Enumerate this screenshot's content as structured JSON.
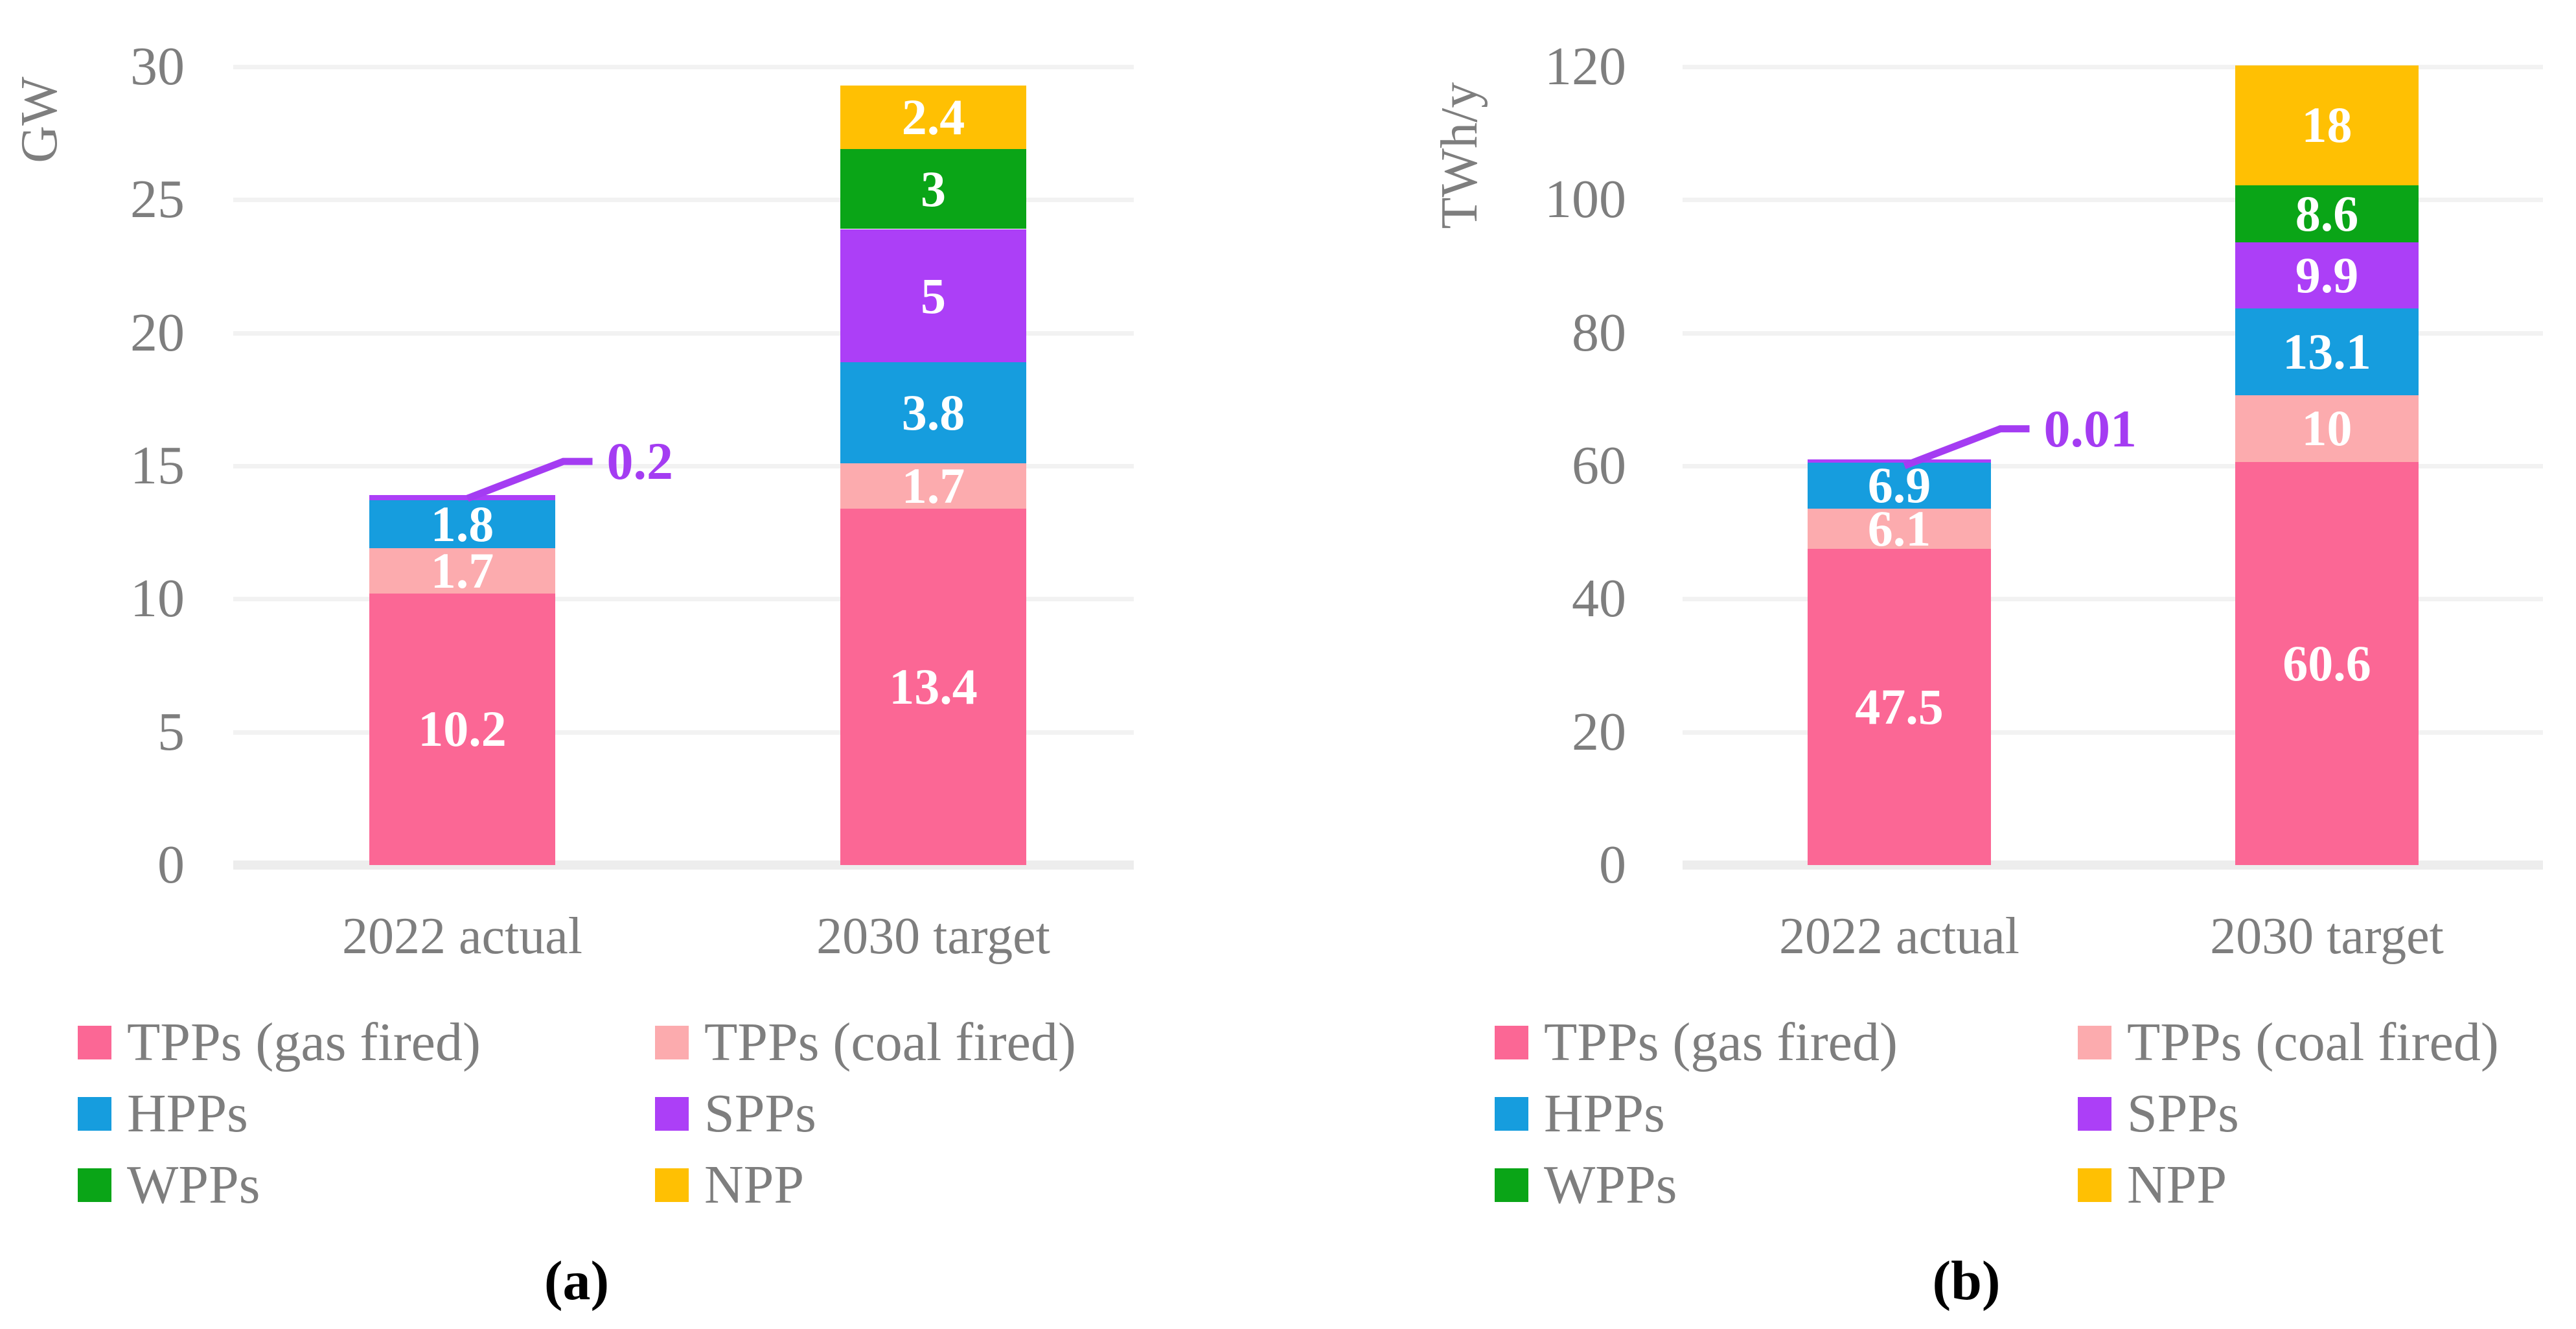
{
  "figure": {
    "caption_a": "(a)",
    "caption_b": "(b)"
  },
  "colors": {
    "gas": "#FB6795",
    "coal": "#FCABAE",
    "hpp": "#169DDE",
    "spp": "#AC3FF7",
    "wpp": "#0AA517",
    "npp": "#FFC003",
    "annotation": "#A43CF2",
    "axis_text": "#7E7E7E",
    "gridline": "#F2F2F2",
    "baseline": "#EDEDED",
    "bar_label": "#FFFFFF",
    "caption": "#000000"
  },
  "legend": {
    "rows": [
      [
        {
          "label": "TPPs (gas fired)",
          "color": "gas"
        },
        {
          "label": "TPPs (coal fired)",
          "color": "coal"
        }
      ],
      [
        {
          "label": "HPPs",
          "color": "hpp"
        },
        {
          "label": "SPPs",
          "color": "spp"
        }
      ],
      [
        {
          "label": "WPPs",
          "color": "wpp"
        },
        {
          "label": "NPP",
          "color": "npp"
        }
      ]
    ]
  },
  "chart_data": [
    {
      "type": "bar",
      "stacked": true,
      "title": "",
      "xlabel": "",
      "ylabel": "GW",
      "ylim": [
        0,
        30
      ],
      "yticks": [
        0,
        5,
        10,
        15,
        20,
        25,
        30
      ],
      "grid": true,
      "legend_position": "bottom",
      "categories": [
        "2022 actual",
        "2030 target"
      ],
      "series": [
        {
          "name": "TPPs (gas fired)",
          "color": "gas",
          "values": [
            10.2,
            13.4
          ]
        },
        {
          "name": "TPPs (coal fired)",
          "color": "coal",
          "values": [
            1.7,
            1.7
          ]
        },
        {
          "name": "HPPs",
          "color": "hpp",
          "values": [
            1.8,
            3.8
          ]
        },
        {
          "name": "SPPs",
          "color": "spp",
          "values": [
            0.2,
            5
          ]
        },
        {
          "name": "WPPs",
          "color": "wpp",
          "values": [
            0,
            3
          ]
        },
        {
          "name": "NPP",
          "color": "npp",
          "values": [
            0,
            2.4
          ]
        }
      ],
      "annotations": [
        {
          "category_index": 0,
          "series": "SPPs",
          "text": "0.2"
        }
      ]
    },
    {
      "type": "bar",
      "stacked": true,
      "title": "",
      "xlabel": "",
      "ylabel": "TWh/y",
      "ylim": [
        0,
        120
      ],
      "yticks": [
        0,
        20,
        40,
        60,
        80,
        100,
        120
      ],
      "grid": true,
      "legend_position": "bottom",
      "categories": [
        "2022 actual",
        "2030 target"
      ],
      "series": [
        {
          "name": "TPPs (gas fired)",
          "color": "gas",
          "values": [
            47.5,
            60.6
          ]
        },
        {
          "name": "TPPs (coal fired)",
          "color": "coal",
          "values": [
            6.1,
            10
          ]
        },
        {
          "name": "HPPs",
          "color": "hpp",
          "values": [
            6.9,
            13.1
          ]
        },
        {
          "name": "SPPs",
          "color": "spp",
          "values": [
            0.01,
            9.9
          ]
        },
        {
          "name": "WPPs",
          "color": "wpp",
          "values": [
            0,
            8.6
          ]
        },
        {
          "name": "NPP",
          "color": "npp",
          "values": [
            0,
            18
          ]
        }
      ],
      "annotations": [
        {
          "category_index": 0,
          "series": "SPPs",
          "text": "0.01"
        }
      ]
    }
  ]
}
